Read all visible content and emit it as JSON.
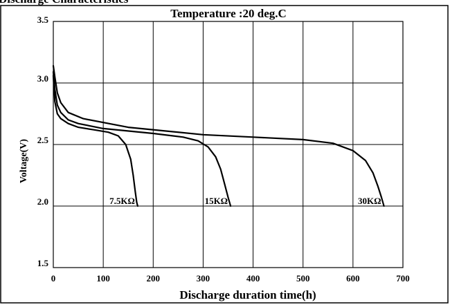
{
  "header_text": "Discharge Characteristics",
  "chart_data": {
    "type": "line",
    "title": "Temperature :20 deg.C",
    "xlabel": "Discharge duration time(h)",
    "ylabel": "Voltage(V)",
    "xlim": [
      0,
      700
    ],
    "ylim": [
      1.5,
      3.5
    ],
    "x_ticks": [
      "0",
      "100",
      "200",
      "300",
      "400",
      "500",
      "600",
      "700"
    ],
    "y_ticks": [
      "1.5",
      "2.0",
      "2.5",
      "3.0",
      "3.5"
    ],
    "grid": true,
    "series": [
      {
        "name": "7.5KΩ",
        "x": [
          0,
          3,
          8,
          15,
          30,
          50,
          80,
          110,
          130,
          145,
          155,
          160,
          164,
          167,
          169
        ],
        "y": [
          3.06,
          2.85,
          2.75,
          2.71,
          2.67,
          2.64,
          2.62,
          2.6,
          2.57,
          2.5,
          2.38,
          2.25,
          2.12,
          2.03,
          2.0
        ]
      },
      {
        "name": "15KΩ",
        "x": [
          0,
          3,
          8,
          15,
          30,
          50,
          100,
          200,
          260,
          290,
          310,
          325,
          335,
          343,
          350,
          355
        ],
        "y": [
          3.09,
          2.95,
          2.82,
          2.76,
          2.7,
          2.67,
          2.63,
          2.59,
          2.56,
          2.53,
          2.48,
          2.4,
          2.3,
          2.18,
          2.07,
          2.0
        ]
      },
      {
        "name": "30KΩ",
        "x": [
          0,
          3,
          8,
          15,
          30,
          60,
          150,
          300,
          400,
          500,
          560,
          600,
          625,
          640,
          650,
          657,
          662
        ],
        "y": [
          3.14,
          3.05,
          2.92,
          2.84,
          2.76,
          2.71,
          2.64,
          2.58,
          2.56,
          2.54,
          2.51,
          2.45,
          2.37,
          2.27,
          2.16,
          2.07,
          2.0
        ]
      }
    ]
  }
}
